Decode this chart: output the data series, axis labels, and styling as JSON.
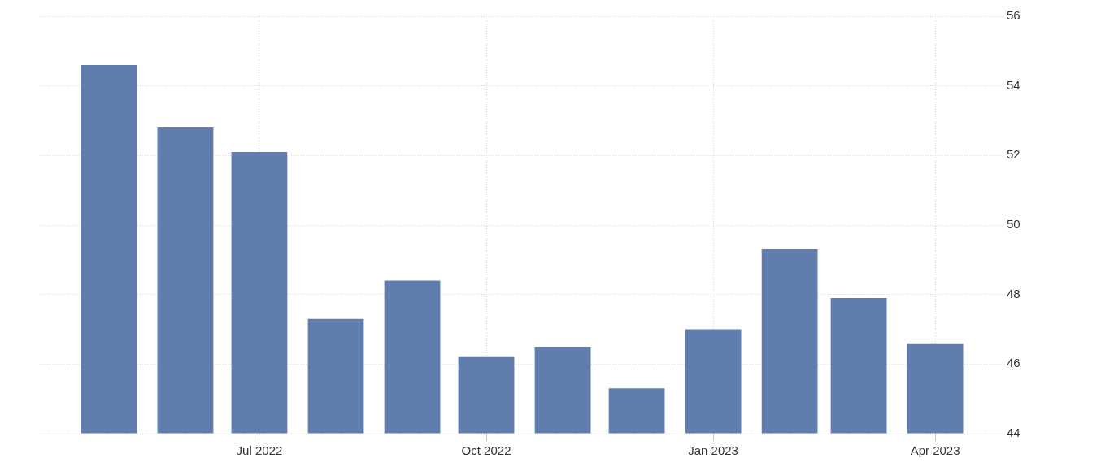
{
  "chart_data": {
    "type": "bar",
    "x": [
      "2022-05",
      "2022-06",
      "2022-07",
      "2022-08",
      "2022-09",
      "2022-10",
      "2022-11",
      "2022-12",
      "2023-01",
      "2023-02",
      "2023-03",
      "2023-04"
    ],
    "values": [
      54.6,
      52.8,
      52.1,
      47.3,
      48.4,
      46.2,
      46.5,
      45.3,
      47.0,
      49.3,
      47.9,
      46.6
    ],
    "color": "#5f7ead",
    "xlim": [
      "2022-04-03",
      "2023-04-28"
    ],
    "xticks": [
      {
        "value": "2022-07",
        "label": "Jul 2022"
      },
      {
        "value": "2022-10",
        "label": "Oct 2022"
      },
      {
        "value": "2023-01",
        "label": "Jan 2023"
      },
      {
        "value": "2023-04",
        "label": "Apr 2023"
      }
    ],
    "ylim": [
      44,
      56
    ],
    "yticks": [
      44,
      46,
      48,
      50,
      52,
      54,
      56
    ],
    "grid": true
  }
}
